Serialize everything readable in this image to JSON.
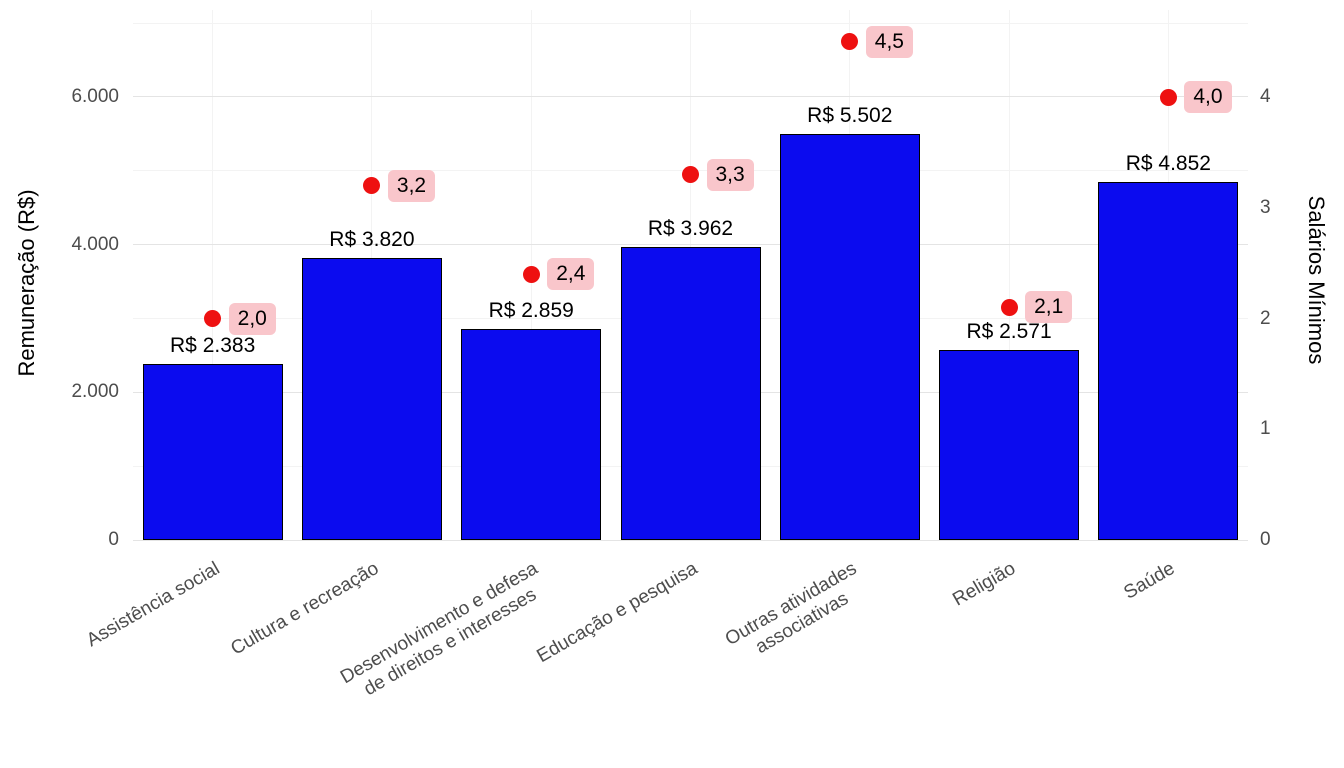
{
  "chart_data": {
    "type": "bar",
    "title": "",
    "legend": "none",
    "grid": true,
    "categories": [
      [
        "Assistência social"
      ],
      [
        "Cultura e recreação"
      ],
      [
        "Desenvolvimento e defesa",
        "de direitos e interesses"
      ],
      [
        "Educação e pesquisa"
      ],
      [
        "Outras atividades",
        "associativas"
      ],
      [
        "Religião"
      ],
      [
        "Saúde"
      ]
    ],
    "series": [
      {
        "name": "Remuneração (R$)",
        "type": "bar",
        "axis": "left",
        "values": [
          2383,
          3820,
          2859,
          3962,
          5502,
          2571,
          4852
        ],
        "labels": [
          "R$ 2.383",
          "R$ 3.820",
          "R$ 2.859",
          "R$ 3.962",
          "R$ 5.502",
          "R$ 2.571",
          "R$ 4.852"
        ]
      },
      {
        "name": "Salários Mínimos",
        "type": "point",
        "axis": "right",
        "values": [
          2.0,
          3.2,
          2.4,
          3.3,
          4.5,
          2.1,
          4.0
        ],
        "labels": [
          "2,0",
          "3,2",
          "2,4",
          "3,3",
          "4,5",
          "2,1",
          "4,0"
        ]
      }
    ],
    "left_axis": {
      "label": "Remuneração (R$)",
      "tick_labels": [
        "0",
        "2.000",
        "4.000",
        "6.000"
      ],
      "tick_values": [
        0,
        2000,
        4000,
        6000
      ],
      "minor_values": [
        1000,
        3000,
        5000,
        7000
      ],
      "range": [
        0,
        7178
      ]
    },
    "right_axis": {
      "label": "Salários Mínimos",
      "tick_labels": [
        "0",
        "1",
        "2",
        "3",
        "4"
      ],
      "tick_values": [
        0,
        1,
        2,
        3,
        4
      ],
      "range": [
        0,
        4.786
      ]
    },
    "colors": {
      "background": "#ffffff",
      "bar_fill": "#0b0bef",
      "bar_border": "#000000",
      "point": "#ee1111",
      "point_label_bg": "#f9c6cb",
      "grid_major": "#e4e4e4",
      "grid_minor": "#f3f3f3",
      "tick_text": "#4d4d4d",
      "label_text": "#000000"
    }
  }
}
